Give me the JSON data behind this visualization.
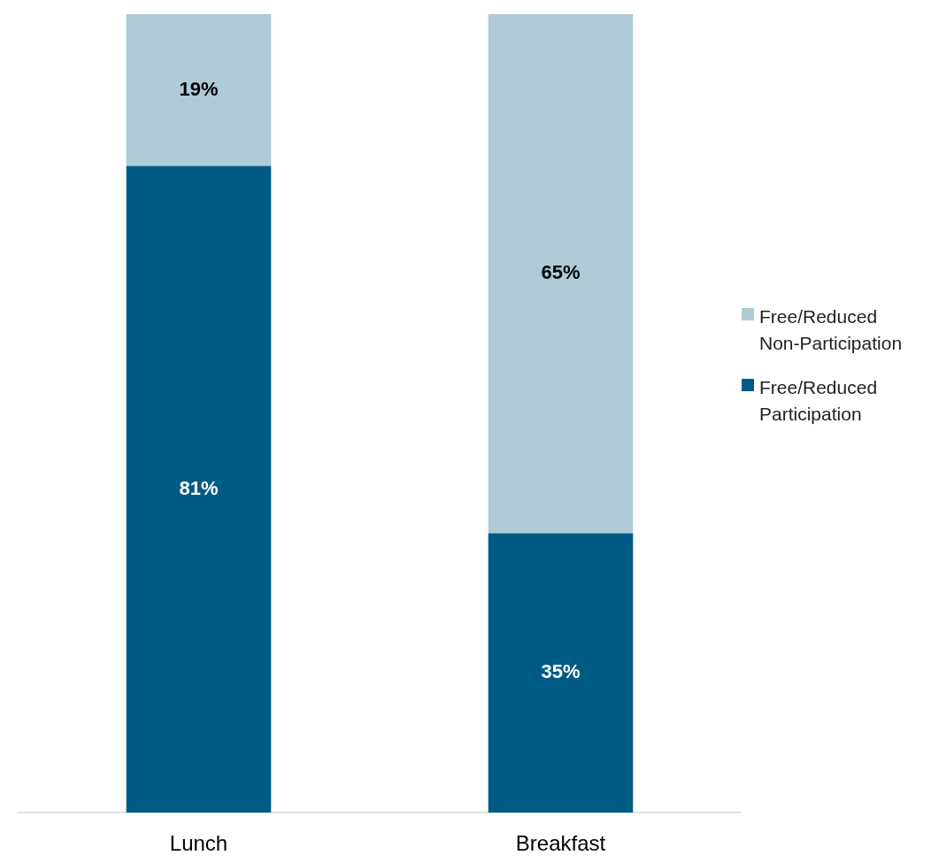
{
  "chart_data": {
    "type": "bar",
    "stacked": true,
    "categories": [
      "Lunch",
      "Breakfast"
    ],
    "series": [
      {
        "name": "Free/Reduced Participation",
        "color": "#005b84",
        "values": [
          81,
          35
        ],
        "value_labels": [
          "81%",
          "35%"
        ]
      },
      {
        "name": "Free/Reduced Non-Participation",
        "color": "#aecbd6",
        "values": [
          19,
          65
        ],
        "value_labels": [
          "19%",
          "65%"
        ]
      }
    ],
    "tick_labels": "x",
    "grid": false,
    "legend": "right"
  }
}
